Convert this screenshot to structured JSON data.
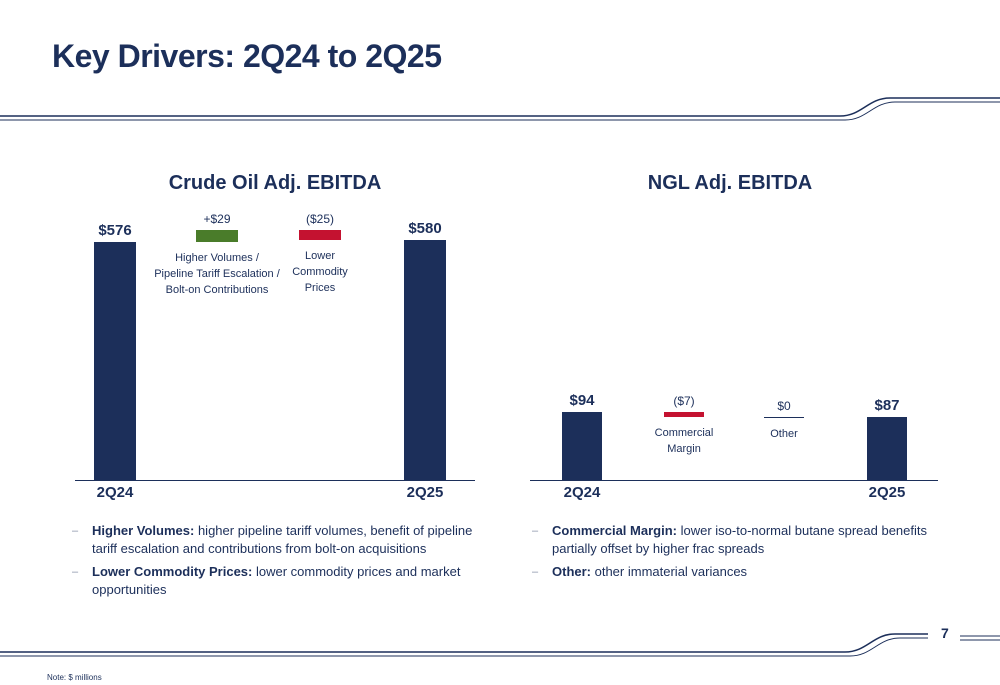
{
  "page": {
    "title": "Key Drivers: 2Q24 to 2Q25",
    "note": "Note: $ millions",
    "page_number": "7"
  },
  "colors": {
    "navy": "#1c2f5a",
    "positive": "#4a7c2a",
    "negative": "#c41230"
  },
  "chart_data": [
    {
      "type": "bar",
      "subtype": "waterfall",
      "title": "Crude Oil Adj. EBITDA",
      "categories": [
        "2Q24",
        "Higher Volumes / Pipeline Tariff Escalation / Bolt-on Contributions",
        "Lower Commodity Prices",
        "2Q25"
      ],
      "start": {
        "label": "2Q24",
        "value": 576,
        "value_label": "$576"
      },
      "steps": [
        {
          "value": 29,
          "value_label": "+$29",
          "desc_lines": [
            "Higher Volumes /",
            "Pipeline Tariff Escalation /",
            "Bolt-on Contributions"
          ],
          "direction": "up"
        },
        {
          "value": -25,
          "value_label": "($25)",
          "desc_lines": [
            "Lower",
            "Commodity",
            "Prices"
          ],
          "direction": "down"
        }
      ],
      "end": {
        "label": "2Q25",
        "value": 580,
        "value_label": "$580"
      }
    },
    {
      "type": "bar",
      "subtype": "waterfall",
      "title": "NGL Adj. EBITDA",
      "categories": [
        "2Q24",
        "Commercial Margin",
        "Other",
        "2Q25"
      ],
      "start": {
        "label": "2Q24",
        "value": 94,
        "value_label": "$94"
      },
      "steps": [
        {
          "value": -7,
          "value_label": "($7)",
          "desc_lines": [
            "Commercial",
            "Margin"
          ],
          "direction": "down"
        },
        {
          "value": 0,
          "value_label": "$0",
          "desc_lines": [
            "Other"
          ],
          "direction": "flat"
        }
      ],
      "end": {
        "label": "2Q25",
        "value": 87,
        "value_label": "$87"
      }
    }
  ],
  "bullets": {
    "crude": [
      {
        "bold": "Higher Volumes:",
        "text": " higher pipeline tariff volumes, benefit of pipeline tariff escalation and contributions from bolt-on acquisitions"
      },
      {
        "bold": "Lower Commodity Prices:",
        "text": " lower commodity prices and market opportunities"
      }
    ],
    "ngl": [
      {
        "bold": "Commercial Margin:",
        "text": " lower iso-to-normal butane spread benefits partially offset by higher frac spreads"
      },
      {
        "bold": "Other:",
        "text": " other immaterial variances"
      }
    ]
  }
}
